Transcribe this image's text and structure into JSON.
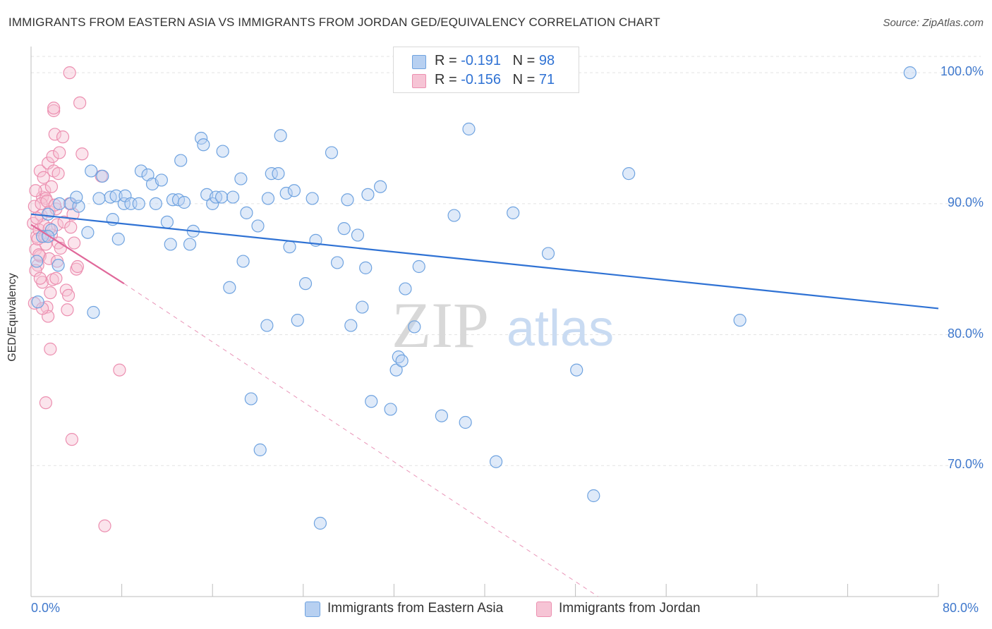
{
  "title": "IMMIGRANTS FROM EASTERN ASIA VS IMMIGRANTS FROM JORDAN GED/EQUIVALENCY CORRELATION CHART",
  "source": "Source: ZipAtlas.com",
  "watermark": {
    "zip": "ZIP",
    "atlas": "atlas"
  },
  "colors": {
    "blue": "#6fa3e0",
    "blue_fill": "#b7d0f1",
    "blue_line": "#2f72d4",
    "pink": "#ec8fb0",
    "pink_fill": "#f6c4d5",
    "pink_line": "#e0689a",
    "value_text": "#2f72d4"
  },
  "legend": {
    "rows": [
      {
        "r_label": "R =",
        "r_value": "-0.191",
        "n_label": "N =",
        "n_value": "98"
      },
      {
        "r_label": "R =",
        "r_value": "-0.156",
        "n_label": "N =",
        "n_value": "71"
      }
    ]
  },
  "chart_data": {
    "type": "scatter",
    "title": "IMMIGRANTS FROM EASTERN ASIA VS IMMIGRANTS FROM JORDAN GED/EQUIVALENCY CORRELATION CHART",
    "xlabel": "",
    "ylabel": "GED/Equivalency",
    "xlim": [
      0,
      80
    ],
    "ylim": [
      60,
      102
    ],
    "x_tick_labels": [
      "0.0%",
      "80.0%"
    ],
    "y_ticks": [
      70,
      80,
      90,
      100
    ],
    "y_tick_labels": [
      "70.0%",
      "80.0%",
      "90.0%",
      "100.0%"
    ],
    "grid": true,
    "legend_position": "top-center",
    "series": [
      {
        "name": "Immigrants from Eastern Asia",
        "color": "#6fa3e0",
        "trend": {
          "x": [
            0,
            80
          ],
          "y": [
            89.2,
            82.0
          ],
          "style": "solid"
        },
        "points": [
          [
            1.0,
            87.5
          ],
          [
            1.8,
            88.0
          ],
          [
            1.5,
            89.2
          ],
          [
            2.5,
            90.0
          ],
          [
            3.5,
            90.0
          ],
          [
            4.2,
            89.8
          ],
          [
            4.0,
            90.5
          ],
          [
            5.0,
            87.8
          ],
          [
            2.4,
            85.3
          ],
          [
            5.5,
            81.7
          ],
          [
            5.3,
            92.5
          ],
          [
            6.3,
            92.1
          ],
          [
            7.0,
            90.5
          ],
          [
            7.5,
            90.6
          ],
          [
            6.0,
            90.4
          ],
          [
            7.2,
            88.8
          ],
          [
            7.7,
            87.3
          ],
          [
            8.2,
            90.0
          ],
          [
            8.3,
            90.6
          ],
          [
            8.8,
            90.0
          ],
          [
            9.5,
            90.0
          ],
          [
            9.7,
            92.5
          ],
          [
            10.3,
            92.2
          ],
          [
            10.7,
            91.5
          ],
          [
            11.0,
            90.0
          ],
          [
            11.5,
            91.8
          ],
          [
            12.0,
            88.6
          ],
          [
            12.3,
            86.9
          ],
          [
            12.5,
            90.3
          ],
          [
            13.0,
            90.3
          ],
          [
            13.2,
            93.3
          ],
          [
            13.5,
            90.1
          ],
          [
            14.0,
            86.9
          ],
          [
            14.3,
            87.9
          ],
          [
            15.0,
            95.0
          ],
          [
            15.2,
            94.5
          ],
          [
            15.5,
            90.7
          ],
          [
            16.0,
            90.0
          ],
          [
            16.3,
            90.5
          ],
          [
            16.8,
            90.5
          ],
          [
            16.9,
            94.0
          ],
          [
            17.5,
            83.6
          ],
          [
            17.8,
            90.5
          ],
          [
            18.5,
            91.9
          ],
          [
            18.7,
            85.6
          ],
          [
            19.0,
            89.3
          ],
          [
            19.4,
            75.1
          ],
          [
            20.0,
            88.3
          ],
          [
            20.2,
            71.2
          ],
          [
            20.8,
            80.7
          ],
          [
            20.9,
            90.4
          ],
          [
            21.2,
            92.3
          ],
          [
            21.8,
            92.3
          ],
          [
            22.0,
            95.2
          ],
          [
            22.5,
            90.8
          ],
          [
            22.8,
            86.7
          ],
          [
            23.2,
            91.0
          ],
          [
            23.5,
            81.1
          ],
          [
            24.2,
            83.9
          ],
          [
            24.8,
            90.4
          ],
          [
            25.1,
            87.2
          ],
          [
            25.5,
            65.6
          ],
          [
            26.5,
            93.9
          ],
          [
            27.0,
            85.5
          ],
          [
            27.6,
            88.1
          ],
          [
            27.9,
            90.3
          ],
          [
            28.2,
            80.7
          ],
          [
            28.8,
            87.6
          ],
          [
            29.2,
            82.1
          ],
          [
            29.5,
            85.1
          ],
          [
            29.7,
            90.7
          ],
          [
            30.0,
            74.9
          ],
          [
            30.8,
            91.3
          ],
          [
            31.7,
            74.3
          ],
          [
            32.2,
            77.3
          ],
          [
            32.4,
            78.3
          ],
          [
            32.7,
            78.0
          ],
          [
            33.0,
            83.5
          ],
          [
            33.8,
            80.6
          ],
          [
            34.2,
            85.2
          ],
          [
            36.2,
            73.8
          ],
          [
            37.3,
            89.1
          ],
          [
            38.1,
            100.0
          ],
          [
            38.3,
            73.3
          ],
          [
            38.6,
            95.7
          ],
          [
            39.0,
            99.3
          ],
          [
            41.0,
            70.3
          ],
          [
            42.5,
            89.3
          ],
          [
            42.8,
            99.9
          ],
          [
            45.6,
            86.2
          ],
          [
            48.1,
            77.3
          ],
          [
            49.6,
            67.7
          ],
          [
            52.7,
            92.3
          ],
          [
            62.5,
            81.1
          ],
          [
            77.5,
            100.0
          ],
          [
            0.6,
            82.5
          ],
          [
            0.5,
            85.6
          ],
          [
            1.5,
            87.5
          ]
        ]
      },
      {
        "name": "Immigrants from Jordan",
        "color": "#ec8fb0",
        "trend": {
          "x": [
            0,
            8.2
          ],
          "y": [
            88.4,
            83.9
          ],
          "style": "solid",
          "extension": {
            "x": [
              8.2,
              50
            ],
            "y": [
              83.9,
              60
            ]
          }
        },
        "points": [
          [
            0.2,
            88.5
          ],
          [
            0.3,
            89.8
          ],
          [
            0.4,
            86.5
          ],
          [
            0.5,
            87.5
          ],
          [
            0.6,
            85.3
          ],
          [
            0.7,
            88.0
          ],
          [
            0.8,
            92.5
          ],
          [
            0.8,
            86.0
          ],
          [
            0.9,
            89.1
          ],
          [
            1.0,
            90.5
          ],
          [
            1.0,
            84.0
          ],
          [
            1.1,
            92.0
          ],
          [
            1.1,
            88.4
          ],
          [
            1.2,
            91.0
          ],
          [
            1.3,
            90.4
          ],
          [
            1.3,
            86.9
          ],
          [
            1.4,
            82.1
          ],
          [
            1.5,
            81.4
          ],
          [
            1.5,
            93.1
          ],
          [
            1.6,
            89.4
          ],
          [
            1.6,
            85.8
          ],
          [
            1.7,
            83.2
          ],
          [
            1.7,
            78.9
          ],
          [
            1.8,
            87.6
          ],
          [
            1.9,
            93.6
          ],
          [
            1.9,
            84.2
          ],
          [
            2.0,
            97.1
          ],
          [
            2.0,
            92.5
          ],
          [
            2.1,
            95.3
          ],
          [
            2.2,
            89.6
          ],
          [
            2.2,
            84.3
          ],
          [
            2.3,
            88.4
          ],
          [
            2.4,
            92.3
          ],
          [
            2.4,
            87.0
          ],
          [
            2.5,
            93.9
          ],
          [
            2.6,
            86.6
          ],
          [
            2.8,
            95.1
          ],
          [
            2.9,
            88.6
          ],
          [
            3.1,
            83.4
          ],
          [
            3.2,
            81.9
          ],
          [
            3.3,
            83.0
          ],
          [
            3.4,
            90.0
          ],
          [
            3.5,
            88.2
          ],
          [
            3.6,
            72.0
          ],
          [
            3.7,
            89.2
          ],
          [
            3.8,
            87.0
          ],
          [
            4.0,
            85.0
          ],
          [
            4.1,
            85.2
          ],
          [
            4.3,
            97.7
          ],
          [
            4.5,
            93.8
          ],
          [
            3.4,
            100.0
          ],
          [
            2.0,
            97.3
          ],
          [
            1.3,
            74.8
          ],
          [
            6.2,
            92.1
          ],
          [
            6.5,
            65.4
          ],
          [
            7.8,
            77.3
          ],
          [
            0.3,
            82.4
          ],
          [
            0.4,
            84.9
          ],
          [
            0.5,
            88.9
          ],
          [
            0.6,
            87.3
          ],
          [
            0.7,
            86.1
          ],
          [
            0.8,
            84.3
          ],
          [
            0.9,
            90.0
          ],
          [
            1.0,
            82.0
          ],
          [
            1.2,
            87.5
          ],
          [
            1.4,
            90.2
          ],
          [
            1.6,
            88.1
          ],
          [
            1.8,
            91.3
          ],
          [
            2.1,
            89.9
          ],
          [
            2.3,
            85.6
          ],
          [
            0.4,
            91.0
          ]
        ]
      }
    ]
  },
  "bottom_legend": [
    {
      "label": "Immigrants from Eastern Asia"
    },
    {
      "label": "Immigrants from Jordan"
    }
  ]
}
